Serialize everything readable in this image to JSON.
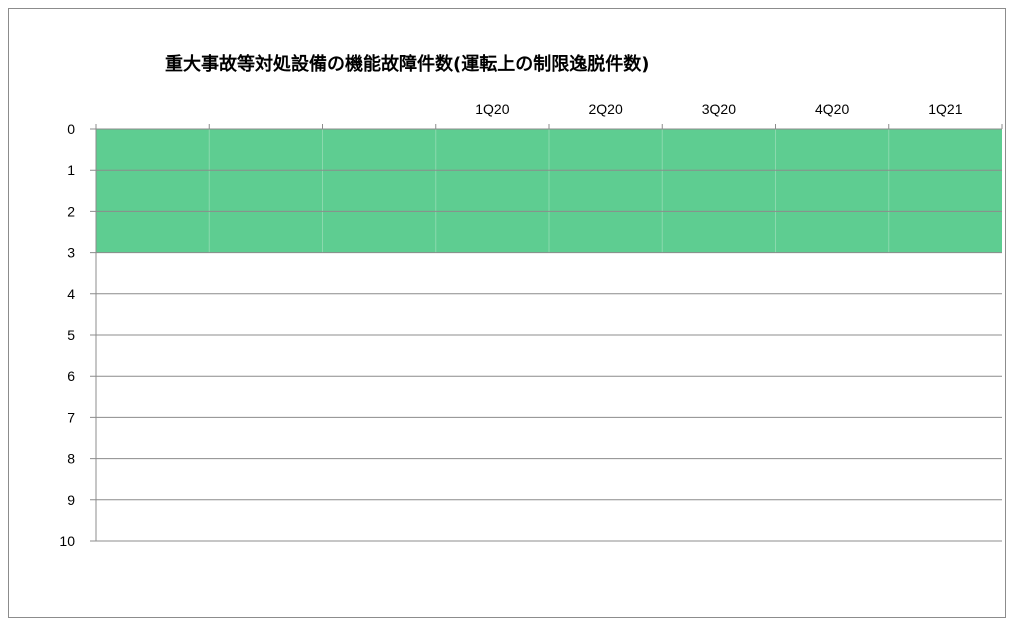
{
  "chart_data": {
    "type": "bar",
    "title": "重大事故等対処設備の機能故障件数(運転上の制限逸脱件数)",
    "categories": [
      "",
      "",
      "",
      "1Q20",
      "2Q20",
      "3Q20",
      "4Q20",
      "1Q21"
    ],
    "ylim": [
      0,
      10
    ],
    "y_ticks": [
      0,
      1,
      2,
      3,
      4,
      5,
      6,
      7,
      8,
      9,
      10
    ],
    "y_inverted": true,
    "x_axis_position": "top",
    "grid": true,
    "band": {
      "from": 0,
      "to": 3,
      "color": "#5ecd91"
    },
    "colors": {
      "gridline": "#8c8c8c",
      "band": "#5ecd91",
      "band_divider": "#8ad9ad"
    }
  }
}
